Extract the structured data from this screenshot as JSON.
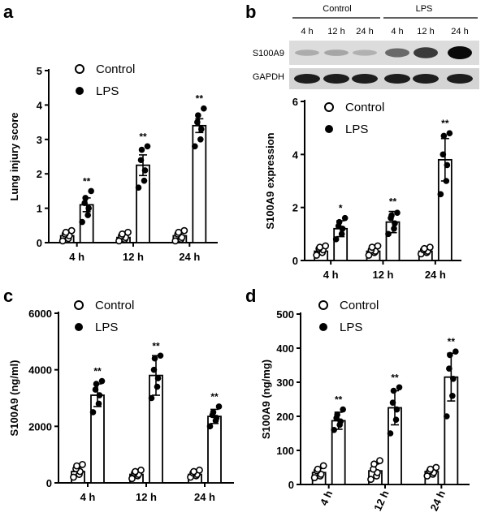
{
  "chart_data": [
    {
      "panel": "a",
      "type": "bar",
      "ylabel": "Lung injury score",
      "ylim": [
        0,
        5
      ],
      "yticks": [
        0,
        1,
        2,
        3,
        4,
        5
      ],
      "categories": [
        "4 h",
        "12 h",
        "24 h"
      ],
      "series": [
        {
          "name": "Control",
          "values": [
            0.2,
            0.15,
            0.2
          ],
          "errors": [
            0.08,
            0.06,
            0.08
          ],
          "points": [
            [
              0.05,
              0.12,
              0.2,
              0.25,
              0.3,
              0.35
            ],
            [
              0.05,
              0.1,
              0.15,
              0.2,
              0.25,
              0.3
            ],
            [
              0.05,
              0.1,
              0.15,
              0.25,
              0.3,
              0.35
            ]
          ]
        },
        {
          "name": "LPS",
          "values": [
            1.1,
            2.25,
            3.4
          ],
          "errors": [
            0.2,
            0.3,
            0.2
          ],
          "points": [
            [
              0.6,
              0.8,
              1.0,
              1.15,
              1.3,
              1.5
            ],
            [
              1.6,
              1.8,
              2.1,
              2.4,
              2.7,
              2.8
            ],
            [
              2.8,
              3.0,
              3.3,
              3.5,
              3.7,
              3.9
            ]
          ]
        }
      ],
      "significance": [
        "**",
        "**",
        "**"
      ],
      "legend_position": "top-left"
    },
    {
      "panel": "b",
      "type": "bar",
      "ylabel": "S100A9 expression",
      "ylim": [
        0,
        6
      ],
      "yticks": [
        0,
        2,
        4,
        6
      ],
      "categories": [
        "4 h",
        "12 h",
        "24 h"
      ],
      "series": [
        {
          "name": "Control",
          "values": [
            0.35,
            0.35,
            0.35
          ],
          "errors": [
            0.1,
            0.1,
            0.08
          ],
          "points": [
            [
              0.2,
              0.3,
              0.4,
              0.45,
              0.5,
              0.55
            ],
            [
              0.2,
              0.3,
              0.35,
              0.4,
              0.5,
              0.55
            ],
            [
              0.25,
              0.3,
              0.35,
              0.4,
              0.45,
              0.5
            ]
          ]
        },
        {
          "name": "LPS",
          "values": [
            1.2,
            1.45,
            3.8
          ],
          "errors": [
            0.3,
            0.4,
            0.8
          ],
          "points": [
            [
              0.8,
              1.0,
              1.2,
              1.3,
              1.45,
              1.6
            ],
            [
              1.0,
              1.2,
              1.4,
              1.6,
              1.7,
              1.8
            ],
            [
              2.5,
              3.0,
              3.6,
              4.0,
              4.7,
              4.8
            ]
          ]
        }
      ],
      "significance": [
        "*",
        "**",
        "**"
      ],
      "legend_position": "top-left"
    },
    {
      "panel": "c",
      "type": "bar",
      "ylabel": "S100A9 (ng/ml)",
      "ylim": [
        0,
        6000
      ],
      "yticks": [
        0,
        2000,
        4000,
        6000
      ],
      "categories": [
        "4 h",
        "12 h",
        "24 h"
      ],
      "series": [
        {
          "name": "Control",
          "values": [
            400,
            300,
            300
          ],
          "errors": [
            150,
            100,
            80
          ],
          "points": [
            [
              200,
              300,
              400,
              500,
              600,
              650
            ],
            [
              150,
              250,
              300,
              350,
              400,
              450
            ],
            [
              200,
              250,
              300,
              350,
              400,
              450
            ]
          ]
        },
        {
          "name": "LPS",
          "values": [
            3100,
            3800,
            2350
          ],
          "errors": [
            400,
            700,
            250
          ],
          "points": [
            [
              2500,
              2800,
              3100,
              3300,
              3500,
              3600
            ],
            [
              3000,
              3400,
              3700,
              4000,
              4400,
              4500
            ],
            [
              2000,
              2200,
              2300,
              2400,
              2500,
              2700
            ]
          ]
        }
      ],
      "significance": [
        "**",
        "**",
        "**"
      ],
      "legend_position": "top-left"
    },
    {
      "panel": "d",
      "type": "bar",
      "ylabel": "S100A9 (ng/mg)",
      "ylim": [
        0,
        500
      ],
      "yticks": [
        0,
        100,
        200,
        300,
        400,
        500
      ],
      "categories": [
        "4 h",
        "12 h",
        "24 h"
      ],
      "series": [
        {
          "name": "Control",
          "values": [
            35,
            40,
            38
          ],
          "errors": [
            12,
            20,
            10
          ],
          "points": [
            [
              20,
              25,
              30,
              40,
              45,
              55
            ],
            [
              15,
              25,
              35,
              45,
              60,
              70
            ],
            [
              25,
              30,
              35,
              40,
              45,
              50
            ]
          ]
        },
        {
          "name": "LPS",
          "values": [
            187,
            225,
            315
          ],
          "errors": [
            25,
            50,
            70
          ],
          "points": [
            [
              160,
              175,
              185,
              195,
              205,
              220
            ],
            [
              150,
              190,
              220,
              240,
              275,
              285
            ],
            [
              200,
              260,
              310,
              340,
              380,
              390
            ]
          ]
        }
      ],
      "significance": [
        "**",
        "**",
        "**"
      ],
      "legend_position": "top-left"
    }
  ],
  "panel_labels": [
    "a",
    "b",
    "c",
    "d"
  ],
  "blot": {
    "group_labels": [
      "Control",
      "LPS"
    ],
    "lane_labels": [
      "4 h",
      "12 h",
      "24 h",
      "4 h",
      "12 h",
      "24 h"
    ],
    "row_labels": [
      "S100A9",
      "GAPDH"
    ],
    "s100a9_intensity": [
      0.15,
      0.18,
      0.12,
      0.5,
      0.75,
      1.0
    ],
    "gapdh_intensity": [
      0.9,
      0.9,
      0.9,
      0.9,
      0.9,
      0.9
    ]
  }
}
